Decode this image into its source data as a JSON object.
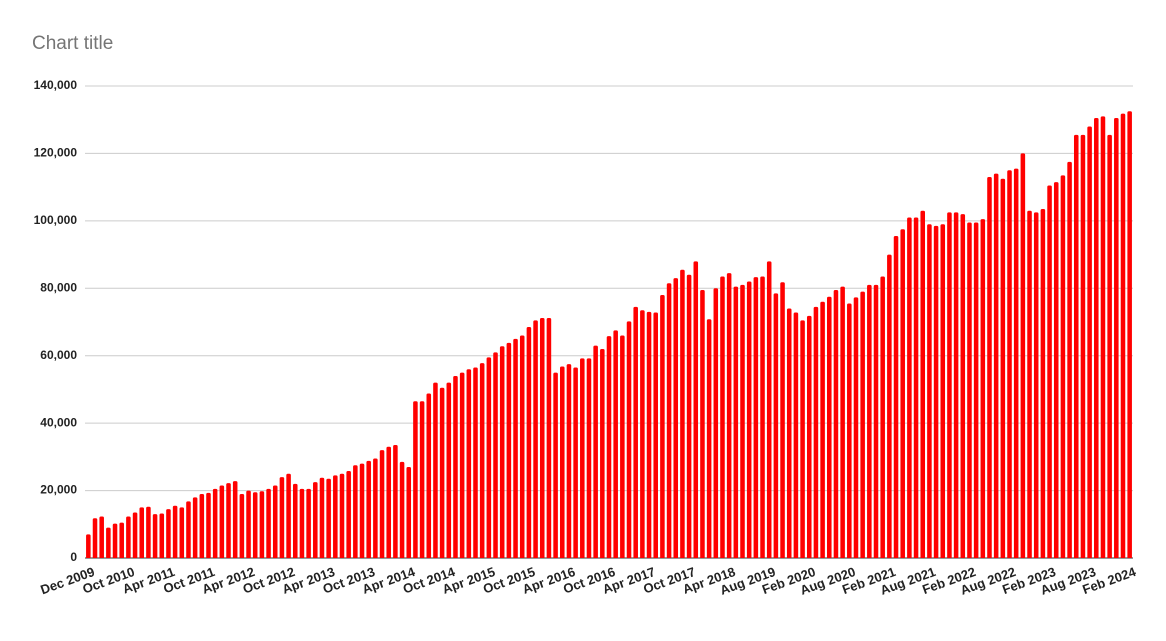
{
  "chart_data": {
    "type": "bar",
    "title": "Chart title",
    "color": "#ff0000",
    "grid": true,
    "ylim": [
      0,
      140000
    ],
    "yticks": [
      0,
      {
        "value": 20000,
        "label": "20,000"
      },
      {
        "value": 40000,
        "label": "40,000"
      },
      {
        "value": 60000,
        "label": "60,000"
      },
      {
        "value": 80000,
        "label": "80,000"
      },
      {
        "value": 100000,
        "label": "100,000"
      },
      {
        "value": 120000,
        "label": "120,000"
      },
      {
        "value": 140000,
        "label": "140,000"
      }
    ],
    "categories": [
      "Dec 2009",
      null,
      null,
      null,
      null,
      null,
      "Oct 2010",
      null,
      null,
      null,
      null,
      null,
      "Apr 2011",
      null,
      null,
      null,
      null,
      null,
      "Oct 2011",
      null,
      null,
      null,
      null,
      null,
      "Apr 2012",
      null,
      null,
      null,
      null,
      null,
      "Oct 2012",
      null,
      null,
      null,
      null,
      null,
      "Apr 2013",
      null,
      null,
      null,
      null,
      null,
      "Oct 2013",
      null,
      null,
      null,
      null,
      null,
      "Apr 2014",
      null,
      null,
      null,
      null,
      null,
      "Oct 2014",
      null,
      null,
      null,
      null,
      null,
      "Apr 2015",
      null,
      null,
      null,
      null,
      null,
      "Oct 2015",
      null,
      null,
      null,
      null,
      null,
      "Apr 2016",
      null,
      null,
      null,
      null,
      null,
      "Oct 2016",
      null,
      null,
      null,
      null,
      null,
      "Apr 2017",
      null,
      null,
      null,
      null,
      null,
      "Oct 2017",
      null,
      null,
      null,
      null,
      null,
      "Apr 2018",
      null,
      null,
      null,
      null,
      null,
      "Aug 2019",
      null,
      null,
      null,
      null,
      null,
      "Feb 2020",
      null,
      null,
      null,
      null,
      null,
      "Aug 2020",
      null,
      null,
      null,
      null,
      null,
      "Feb 2021",
      null,
      null,
      null,
      null,
      null,
      "Aug 2021",
      null,
      null,
      null,
      null,
      null,
      "Feb 2022",
      null,
      null,
      null,
      null,
      null,
      "Aug 2022",
      null,
      null,
      null,
      null,
      null,
      "Feb 2023",
      null,
      null,
      null,
      null,
      null,
      "Aug 2023",
      null,
      null,
      null,
      null,
      null,
      "Feb 2024"
    ],
    "values": [
      7000,
      11800,
      12300,
      9000,
      10200,
      10500,
      12300,
      13500,
      15000,
      15200,
      13000,
      13200,
      14500,
      15500,
      15000,
      16800,
      18000,
      19000,
      19300,
      20500,
      21500,
      22200,
      22800,
      19000,
      20000,
      19500,
      19800,
      20500,
      21500,
      24000,
      25000,
      22000,
      20500,
      20500,
      22500,
      23800,
      23500,
      24500,
      25000,
      25800,
      27500,
      28000,
      28800,
      29500,
      32000,
      33000,
      33500,
      28500,
      27000,
      46500,
      46500,
      48800,
      52000,
      50500,
      52000,
      54000,
      55000,
      56000,
      56500,
      57800,
      59500,
      61000,
      62800,
      63800,
      65000,
      66000,
      68500,
      70500,
      71200,
      71200,
      55000,
      56800,
      57500,
      56500,
      59200,
      59200,
      63000,
      62000,
      65800,
      67500,
      66000,
      70200,
      74500,
      73500,
      73000,
      72800,
      78000,
      81500,
      83000,
      85500,
      84000,
      88000,
      79500,
      70800,
      80000,
      83500,
      84500,
      80500,
      81000,
      82000,
      83300,
      83500,
      88000,
      78500,
      81800,
      74000,
      72800,
      70500,
      71800,
      74500,
      76000,
      77500,
      79500,
      80500,
      75500,
      77300,
      79000,
      81000,
      81000,
      83500,
      90000,
      95500,
      97500,
      101000,
      101000,
      103000,
      99000,
      98500,
      99000,
      102500,
      102500,
      102000,
      99500,
      99500,
      100500,
      113000,
      114000,
      112500,
      115000,
      115500,
      120000,
      103000,
      102500,
      103500,
      110500,
      111500,
      113500,
      117500,
      125500,
      125500,
      128000,
      130500,
      131000,
      125500,
      130500,
      131800,
      132500
    ]
  }
}
